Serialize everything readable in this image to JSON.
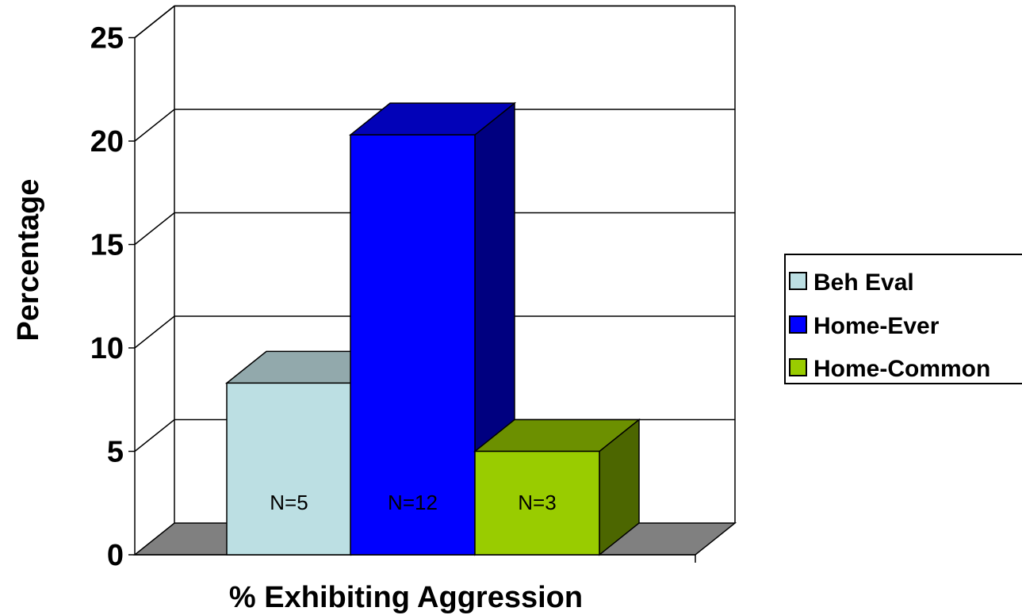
{
  "chart_data": {
    "type": "bar",
    "title": "",
    "xlabel": "% Exhibiting Aggression",
    "ylabel": "Percentage",
    "ylim": [
      0,
      25
    ],
    "yticks": [
      "0",
      "5",
      "10",
      "15",
      "20",
      "25"
    ],
    "grid": true,
    "legend_position": "right",
    "three_d": true,
    "categories": [
      "% Exhibiting Aggression"
    ],
    "series": [
      {
        "name": "Beh Eval",
        "values": [
          8.3
        ],
        "bar_label": "N=5",
        "color": "#BCDFE3",
        "top_color": "#92A9AC",
        "side_color": "#6F8386"
      },
      {
        "name": "Home-Ever",
        "values": [
          20.3
        ],
        "bar_label": "N=12",
        "color": "#0000FF",
        "top_color": "#0202B8",
        "side_color": "#000080"
      },
      {
        "name": "Home-Common",
        "values": [
          5.0
        ],
        "bar_label": "N=3",
        "color": "#99CC00",
        "top_color": "#6C9000",
        "side_color": "#4C6600"
      }
    ],
    "colors": {
      "floor": "#808080",
      "wall_border": "#000000",
      "background": "#FFFFFF"
    }
  }
}
